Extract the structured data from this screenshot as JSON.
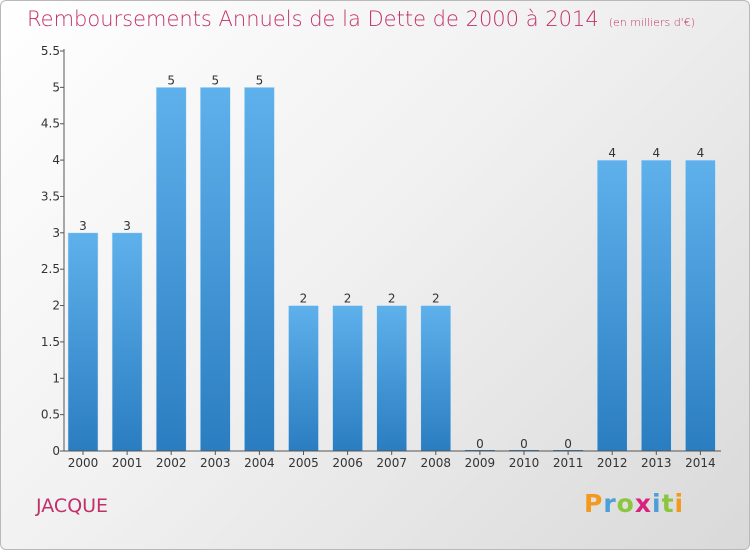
{
  "title": "Remboursements Annuels de la Dette de 2000 à 2014",
  "subtitle": "(en milliers d'€)",
  "commune": "JACQUE",
  "logo": {
    "letters": [
      "P",
      "r",
      "o",
      "x",
      "i",
      "t",
      "i"
    ],
    "colors": [
      "#f39a1e",
      "#4a9fd8",
      "#8cc63f",
      "#d8237e",
      "#4a9fd8",
      "#8cc63f",
      "#f39a1e"
    ]
  },
  "colors": {
    "title": "#c2306a",
    "bar_light": "#5fb1ec",
    "bar_dark": "#2a7dc0"
  },
  "chart_data": {
    "type": "bar",
    "title": "Remboursements Annuels de la Dette de 2000 à 2014",
    "subtitle": "(en milliers d'€)",
    "categories": [
      "2000",
      "2001",
      "2002",
      "2003",
      "2004",
      "2005",
      "2006",
      "2007",
      "2008",
      "2009",
      "2010",
      "2011",
      "2012",
      "2013",
      "2014"
    ],
    "values": [
      3,
      3,
      5,
      5,
      5,
      2,
      2,
      2,
      2,
      0,
      0,
      0,
      4,
      4,
      4
    ],
    "ylim": [
      0,
      5.5
    ],
    "yticks": [
      {
        "value": 0,
        "label": "0"
      },
      {
        "value": 0.5,
        "label": "0.5"
      },
      {
        "value": 1,
        "label": "1"
      },
      {
        "value": 1.5,
        "label": "1.5"
      },
      {
        "value": 2,
        "label": "2"
      },
      {
        "value": 2.5,
        "label": "2.5"
      },
      {
        "value": 3,
        "label": "3"
      },
      {
        "value": 3.5,
        "label": "3.5"
      },
      {
        "value": 4,
        "label": "4"
      },
      {
        "value": 4.5,
        "label": "4.5"
      },
      {
        "value": 5,
        "label": "5"
      },
      {
        "value": 5.5,
        "label": "5.5"
      }
    ],
    "xlabel": "",
    "ylabel": "",
    "grid": false
  }
}
